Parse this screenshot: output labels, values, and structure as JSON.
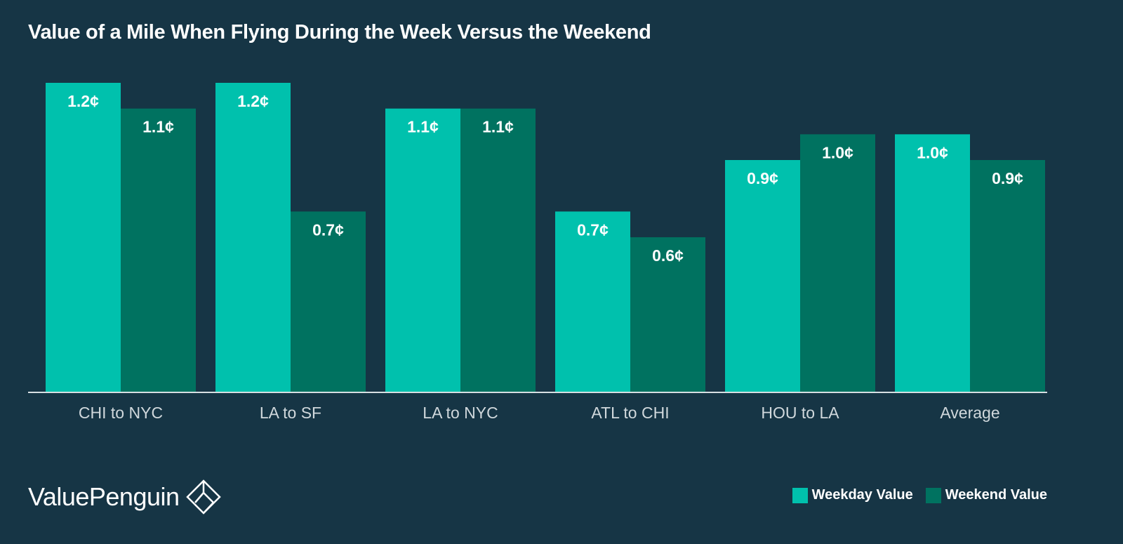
{
  "colors": {
    "background": "#163545",
    "weekday": "#00c1ad",
    "weekend": "#007260",
    "baseline": "#d7dfe3"
  },
  "brand": {
    "name": "ValuePenguin",
    "logo_icon": "diamond-penguin-icon"
  },
  "chart_data": {
    "type": "bar",
    "title": "Value of a Mile When Flying During the Week Versus the Weekend",
    "xlabel": "",
    "ylabel": "",
    "ylim": [
      0,
      1.2
    ],
    "grid": false,
    "legend_position": "bottom-right",
    "categories": [
      "CHI to NYC",
      "LA to SF",
      "LA to NYC",
      "ATL to CHI",
      "HOU to LA",
      "Average"
    ],
    "series": [
      {
        "name": "Weekday Value",
        "values": [
          1.2,
          1.2,
          1.1,
          0.7,
          0.9,
          1.0
        ],
        "labels": [
          "1.2¢",
          "1.2¢",
          "1.1¢",
          "0.7¢",
          "0.9¢",
          "1.0¢"
        ]
      },
      {
        "name": "Weekend Value",
        "values": [
          1.1,
          0.7,
          1.1,
          0.6,
          1.0,
          0.9
        ],
        "labels": [
          "1.1¢",
          "0.7¢",
          "1.1¢",
          "0.6¢",
          "1.0¢",
          "0.9¢"
        ]
      }
    ]
  }
}
